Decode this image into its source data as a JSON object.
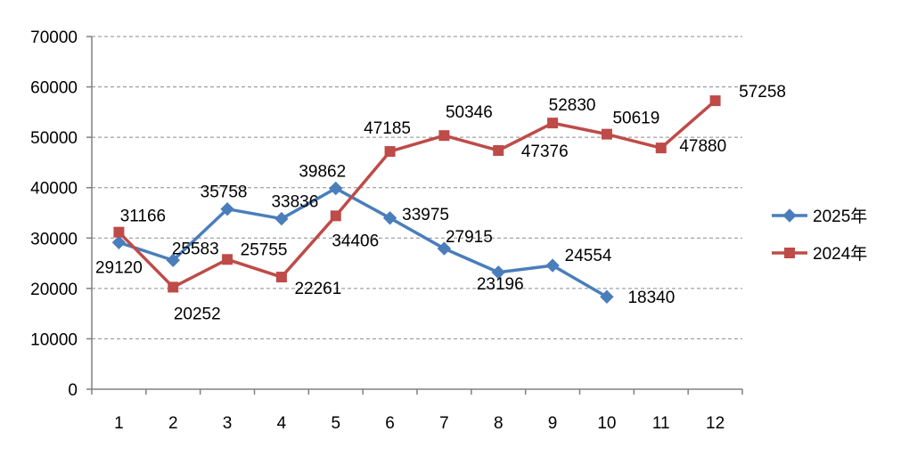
{
  "chart_data": {
    "type": "line",
    "x": [
      "1",
      "2",
      "3",
      "4",
      "5",
      "6",
      "7",
      "8",
      "9",
      "10",
      "11",
      "12"
    ],
    "ylim": [
      0,
      70000
    ],
    "yticks": [
      "0",
      "10000",
      "20000",
      "30000",
      "40000",
      "50000",
      "60000",
      "70000"
    ],
    "grid": true,
    "legend_position": "right",
    "series": [
      {
        "name": "2025年",
        "color": "#4a7ebb",
        "marker": "diamond",
        "values": [
          29120,
          25583,
          35758,
          33836,
          39862,
          33975,
          27915,
          23196,
          24554,
          18340,
          null,
          null
        ]
      },
      {
        "name": "2024年",
        "color": "#be4b48",
        "marker": "square",
        "values": [
          31166,
          20252,
          25755,
          22261,
          34406,
          47185,
          50346,
          47376,
          52830,
          50619,
          47880,
          57258
        ]
      }
    ]
  }
}
